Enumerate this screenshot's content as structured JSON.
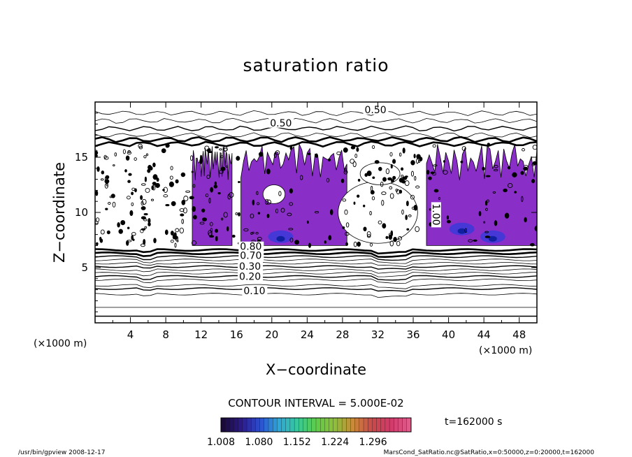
{
  "chart_data": {
    "type": "contour",
    "title": "saturation ratio",
    "xlabel": "X−coordinate",
    "ylabel": "Z−coordinate",
    "x_unit": "(×1000 m)",
    "y_unit": "(×1000 m)",
    "xlim": [
      0,
      50
    ],
    "ylim": [
      0,
      20
    ],
    "x_ticks": [
      4,
      8,
      12,
      16,
      20,
      24,
      28,
      32,
      36,
      40,
      44,
      48
    ],
    "y_ticks": [
      5,
      10,
      15
    ],
    "x_tick_labels": [
      "4",
      "8",
      "12",
      "16",
      "20",
      "24",
      "28",
      "32",
      "36",
      "40",
      "44",
      "48"
    ],
    "y_tick_labels": [
      "5",
      "10",
      "15"
    ],
    "contour_interval_text": "CONTOUR INTERVAL = 5.000E-02",
    "contour_labels": [
      {
        "text": "0.50",
        "x": 30.5,
        "z": 19.0
      },
      {
        "text": "0.50",
        "x": 19.8,
        "z": 17.8
      },
      {
        "text": "1.00",
        "x": 38.2,
        "z": 10.8
      },
      {
        "text": "0.80",
        "x": 16.4,
        "z": 6.6
      },
      {
        "text": "0.70",
        "x": 16.4,
        "z": 5.8
      },
      {
        "text": "0.30",
        "x": 16.3,
        "z": 4.8
      },
      {
        "text": "0.20",
        "x": 16.3,
        "z": 3.9
      },
      {
        "text": "0.10",
        "x": 16.8,
        "z": 2.6
      }
    ],
    "horizontal_contours": [
      0.6,
      1.4,
      2.6,
      3.1,
      3.4,
      3.9,
      4.2,
      4.5,
      4.8,
      5.1,
      5.4,
      5.7,
      6.0,
      6.3,
      6.6,
      16.2,
      16.6,
      17.0,
      17.6,
      18.3,
      19.0
    ],
    "shaded_regions_xrange": [
      [
        11.0,
        15.5
      ],
      [
        16.5,
        28.5
      ],
      [
        37.5,
        50.0
      ]
    ],
    "shading_colorbar": {
      "colors": [
        "#1a0a3a",
        "#2c1a8a",
        "#2d4fd0",
        "#2ea8d8",
        "#37c89a",
        "#5ccd4a",
        "#8fbf3a",
        "#c88a3a",
        "#c84a4a",
        "#d03a6a",
        "#e05a8a"
      ],
      "tick_labels": [
        "1.008",
        "1.080",
        "1.152",
        "1.224",
        "1.296"
      ],
      "range": [
        1.008,
        1.296
      ],
      "main_fill": "#8a2ec8"
    },
    "time_label": "t=162000 s"
  },
  "footer": {
    "left": "/usr/bin/gpview   2008-12-17",
    "right": "MarsCond_SatRatio.nc@SatRatio,x=0:50000,z=0:20000,t=162000"
  }
}
